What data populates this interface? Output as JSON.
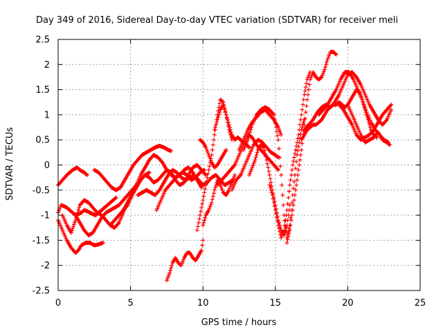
{
  "chart_data": {
    "type": "scatter",
    "title": "Day 349 of 2016, Sidereal Day-to-day VTEC variation (SDTVAR) for receiver meli",
    "xlabel": "GPS time / hours",
    "ylabel": "SDTVAR / TECUs",
    "xlim": [
      0,
      25
    ],
    "ylim": [
      -2.5,
      2.5
    ],
    "xticks": [
      "0",
      "5",
      "10",
      "15",
      "20",
      "25"
    ],
    "yticks": [
      "-2.5",
      "-2",
      "-1.5",
      "-1",
      "-0.5",
      "0",
      "0.5",
      "1",
      "1.5",
      "2",
      "2.5"
    ],
    "grid": true,
    "marker": "+",
    "series_color": "#ff0000",
    "series": [
      {
        "x": [
          0.0,
          0.15,
          0.3,
          0.45,
          0.6,
          0.8,
          1.0,
          1.3,
          1.5,
          1.8,
          2.0
        ],
        "y": [
          -0.4,
          -0.35,
          -0.3,
          -0.25,
          -0.2,
          -0.15,
          -0.1,
          -0.05,
          -0.1,
          -0.15,
          -0.2
        ]
      },
      {
        "x": [
          0.0,
          0.2,
          0.4,
          0.6,
          0.8,
          1.0,
          1.2,
          1.4,
          1.6,
          1.8,
          2.0,
          2.2,
          2.4,
          2.6,
          2.8,
          3.0,
          3.2,
          3.4,
          3.6,
          3.8,
          4.0
        ],
        "y": [
          -0.95,
          -0.8,
          -0.82,
          -0.85,
          -0.9,
          -0.95,
          -1.0,
          -0.98,
          -0.95,
          -0.9,
          -0.92,
          -0.95,
          -0.98,
          -1.0,
          -0.95,
          -0.9,
          -0.85,
          -0.8,
          -0.75,
          -0.7,
          -0.65
        ]
      },
      {
        "x": [
          0.0,
          0.3,
          0.6,
          0.9,
          1.2,
          1.4,
          1.6,
          1.9,
          2.2,
          2.5,
          2.8,
          3.1
        ],
        "y": [
          -1.1,
          -1.3,
          -1.5,
          -1.65,
          -1.75,
          -1.7,
          -1.6,
          -1.55,
          -1.55,
          -1.6,
          -1.58,
          -1.55
        ]
      },
      {
        "x": [
          0.3,
          0.6,
          0.9,
          1.2,
          1.5,
          1.8,
          2.1,
          2.4,
          2.7,
          3.0,
          3.3,
          3.6,
          3.9,
          4.2,
          4.5,
          4.8,
          5.1,
          5.4
        ],
        "y": [
          -1.0,
          -1.2,
          -1.35,
          -1.1,
          -0.8,
          -0.7,
          -0.75,
          -0.85,
          -0.95,
          -1.0,
          -1.1,
          -1.2,
          -1.25,
          -1.15,
          -0.95,
          -0.75,
          -0.55,
          -0.45
        ]
      },
      {
        "x": [
          1.2,
          1.5,
          1.8,
          2.1,
          2.4,
          2.7,
          3.0,
          3.3,
          3.6,
          3.9,
          4.2,
          4.5,
          4.8,
          5.1,
          5.4,
          5.7,
          6.0,
          6.3
        ],
        "y": [
          -1.0,
          -1.15,
          -1.3,
          -1.4,
          -1.35,
          -1.2,
          -1.05,
          -0.95,
          -0.9,
          -0.85,
          -0.8,
          -0.7,
          -0.6,
          -0.5,
          -0.4,
          -0.3,
          -0.2,
          -0.15
        ]
      },
      {
        "x": [
          2.5,
          2.8,
          3.1,
          3.4,
          3.7,
          4.0,
          4.3,
          4.6,
          4.9,
          5.2,
          5.5,
          5.8,
          6.1,
          6.4,
          6.7,
          7.0,
          7.3,
          7.6,
          7.8
        ],
        "y": [
          -0.1,
          -0.15,
          -0.25,
          -0.35,
          -0.45,
          -0.5,
          -0.45,
          -0.3,
          -0.15,
          0.0,
          0.1,
          0.2,
          0.25,
          0.3,
          0.35,
          0.38,
          0.35,
          0.3,
          0.28
        ]
      },
      {
        "x": [
          3.6,
          3.9,
          4.2,
          4.5,
          4.8,
          5.1,
          5.4,
          5.7,
          6.0,
          6.3,
          6.6,
          6.9,
          7.2,
          7.5,
          7.8,
          8.1,
          8.4,
          8.7,
          9.0,
          9.3,
          9.6,
          9.9
        ],
        "y": [
          -1.2,
          -1.1,
          -1.0,
          -0.9,
          -0.8,
          -0.6,
          -0.4,
          -0.2,
          -0.05,
          0.1,
          0.2,
          0.15,
          0.05,
          -0.1,
          -0.2,
          -0.25,
          -0.2,
          -0.1,
          -0.05,
          -0.15,
          -0.3,
          -0.45
        ]
      },
      {
        "x": [
          4.5,
          4.8,
          5.1,
          5.4,
          5.7,
          6.0,
          6.3,
          6.6,
          6.9,
          7.2,
          7.5,
          7.8,
          8.1,
          8.4,
          8.7,
          9.0,
          9.3,
          9.6,
          9.9,
          10.2
        ],
        "y": [
          -0.9,
          -0.75,
          -0.6,
          -0.45,
          -0.3,
          -0.2,
          -0.25,
          -0.35,
          -0.3,
          -0.2,
          -0.1,
          -0.15,
          -0.3,
          -0.4,
          -0.35,
          -0.2,
          -0.05,
          0.0,
          -0.1,
          -0.2
        ]
      },
      {
        "x": [
          5.5,
          5.8,
          6.1,
          6.4,
          6.7,
          7.0,
          7.3,
          7.6,
          7.9,
          8.2,
          8.5,
          8.8,
          9.1,
          9.4,
          9.7,
          10.0,
          10.3,
          10.6,
          10.9,
          11.2,
          11.5,
          11.8,
          12.1
        ],
        "y": [
          -0.6,
          -0.55,
          -0.5,
          -0.55,
          -0.6,
          -0.5,
          -0.35,
          -0.2,
          -0.1,
          -0.15,
          -0.25,
          -0.3,
          -0.25,
          -0.2,
          -0.3,
          -0.4,
          -0.35,
          -0.25,
          -0.2,
          -0.3,
          -0.4,
          -0.35,
          -0.3
        ]
      },
      {
        "x": [
          6.8,
          7.1,
          7.4,
          7.7,
          8.0,
          8.3,
          8.6,
          8.9,
          9.2,
          9.5,
          9.8,
          10.1
        ],
        "y": [
          -0.9,
          -0.7,
          -0.5,
          -0.4,
          -0.3,
          -0.2,
          -0.15,
          -0.2,
          -0.3,
          -0.25,
          -0.15,
          -0.1
        ]
      },
      {
        "x": [
          7.5,
          7.7,
          7.9,
          8.1,
          8.3,
          8.5,
          8.7,
          8.9,
          9.1,
          9.3,
          9.5,
          9.7,
          9.9,
          10.0
        ],
        "y": [
          -2.3,
          -2.15,
          -1.95,
          -1.85,
          -1.95,
          -2.0,
          -1.85,
          -1.75,
          -1.75,
          -1.85,
          -1.9,
          -1.8,
          -1.7,
          -1.5
        ]
      },
      {
        "x": [
          9.6,
          9.8,
          10.0,
          10.2,
          10.4,
          10.6,
          10.8,
          11.0,
          11.2,
          11.4,
          11.6,
          11.8,
          12.0
        ],
        "y": [
          -1.3,
          -1.0,
          -0.7,
          -0.4,
          -0.1,
          0.2,
          0.6,
          1.0,
          1.3,
          1.25,
          1.0,
          0.7,
          0.5
        ]
      },
      {
        "x": [
          9.8,
          10.0,
          10.2,
          10.4,
          10.6,
          10.8,
          11.0,
          11.2,
          11.4,
          11.6
        ],
        "y": [
          0.5,
          0.45,
          0.35,
          0.2,
          0.05,
          -0.05,
          0.0,
          0.1,
          0.2,
          0.3
        ]
      },
      {
        "x": [
          10.0,
          10.2,
          10.4,
          10.6,
          10.8,
          11.0,
          11.2,
          11.4,
          11.6,
          11.8,
          12.0,
          12.2
        ],
        "y": [
          -1.2,
          -1.0,
          -0.9,
          -0.75,
          -0.5,
          -0.3,
          -0.4,
          -0.55,
          -0.6,
          -0.5,
          -0.35,
          -0.2
        ]
      },
      {
        "x": [
          10.8,
          11.0,
          11.2,
          11.4,
          11.6,
          11.8,
          12.0,
          12.2,
          12.4,
          12.6,
          12.8,
          13.0,
          13.2
        ],
        "y": [
          0.7,
          0.9,
          1.1,
          1.2,
          1.0,
          0.8,
          0.6,
          0.5,
          0.55,
          0.5,
          0.45,
          0.4,
          0.35
        ]
      },
      {
        "x": [
          11.0,
          11.3,
          11.6,
          11.9,
          12.2,
          12.5,
          12.8,
          13.1,
          13.4,
          13.7,
          14.0,
          14.3,
          14.6,
          14.9,
          15.2
        ],
        "y": [
          -0.4,
          -0.3,
          -0.2,
          -0.1,
          0.0,
          0.2,
          0.4,
          0.6,
          0.55,
          0.4,
          0.3,
          0.2,
          0.1,
          0.0,
          -0.1
        ]
      },
      {
        "x": [
          12.0,
          12.3,
          12.6,
          12.9,
          13.2,
          13.5,
          13.8,
          14.1,
          14.4,
          14.7,
          15.0,
          15.2
        ],
        "y": [
          -0.5,
          -0.3,
          -0.2,
          0.0,
          0.2,
          0.4,
          0.5,
          0.45,
          0.35,
          0.25,
          0.2,
          0.15
        ]
      },
      {
        "x": [
          12.5,
          12.8,
          13.1,
          13.4,
          13.7,
          14.0,
          14.3,
          14.6,
          14.9,
          15.2,
          15.4
        ],
        "y": [
          0.3,
          0.5,
          0.7,
          0.85,
          0.95,
          1.05,
          1.1,
          1.0,
          0.9,
          0.75,
          0.6
        ]
      },
      {
        "x": [
          12.8,
          13.1,
          13.4,
          13.7,
          14.0,
          14.3,
          14.6,
          14.9,
          15.2,
          15.4,
          15.6,
          15.8,
          16.0,
          16.2,
          16.5,
          16.8,
          17.0
        ],
        "y": [
          0.3,
          0.5,
          0.8,
          1.0,
          1.1,
          1.15,
          1.1,
          1.0,
          0.5,
          -0.2,
          -1.0,
          -1.45,
          -1.2,
          -0.6,
          0.2,
          0.7,
          0.9
        ]
      },
      {
        "x": [
          13.2,
          13.4,
          13.6,
          13.8,
          14.0,
          14.2,
          14.4,
          14.6,
          14.8,
          15.0,
          15.2,
          15.4,
          15.6,
          15.8,
          16.0
        ],
        "y": [
          -0.2,
          -0.05,
          0.1,
          0.3,
          0.4,
          0.35,
          0.1,
          -0.2,
          -0.5,
          -0.8,
          -1.1,
          -1.3,
          -1.4,
          -1.2,
          -0.8
        ]
      },
      {
        "x": [
          14.6,
          14.8,
          15.0,
          15.2,
          15.4,
          15.6,
          15.8,
          16.0,
          16.2,
          16.4,
          16.6,
          16.8,
          17.0,
          17.2,
          17.4
        ],
        "y": [
          -0.4,
          -0.6,
          -0.9,
          -1.2,
          -1.45,
          -1.3,
          -0.9,
          -0.4,
          0.0,
          0.3,
          0.6,
          1.0,
          1.4,
          1.7,
          1.85
        ]
      },
      {
        "x": [
          15.8,
          16.0,
          16.2,
          16.4,
          16.6,
          16.8,
          17.0,
          17.2,
          17.4,
          17.6,
          17.8,
          18.0,
          18.2,
          18.4,
          18.6,
          18.8,
          19.0,
          19.2
        ],
        "y": [
          -1.55,
          -1.3,
          -0.9,
          -0.5,
          -0.1,
          0.3,
          0.8,
          1.3,
          1.7,
          1.85,
          1.75,
          1.7,
          1.75,
          1.9,
          2.1,
          2.25,
          2.25,
          2.2
        ]
      },
      {
        "x": [
          16.8,
          17.0,
          17.2,
          17.4,
          17.6,
          17.8,
          18.0,
          18.2,
          18.4,
          18.6,
          18.8,
          19.0,
          19.2,
          19.4,
          19.6,
          19.8,
          20.0,
          20.2,
          20.4,
          20.6,
          20.8,
          21.0,
          21.2,
          21.4,
          21.6,
          21.8,
          22.0
        ],
        "y": [
          0.5,
          0.6,
          0.7,
          0.75,
          0.8,
          0.8,
          0.85,
          0.9,
          1.0,
          1.1,
          1.15,
          1.2,
          1.2,
          1.25,
          1.2,
          1.15,
          1.2,
          1.3,
          1.4,
          1.5,
          1.45,
          1.3,
          1.1,
          0.9,
          0.7,
          0.6,
          0.55
        ]
      },
      {
        "x": [
          17.0,
          17.3,
          17.6,
          17.9,
          18.2,
          18.5,
          18.8,
          19.1,
          19.4,
          19.7,
          20.0,
          20.3,
          20.6,
          20.9,
          21.2,
          21.5,
          21.8,
          22.1,
          22.4,
          22.7,
          23.0
        ],
        "y": [
          0.7,
          0.8,
          0.9,
          1.05,
          1.15,
          1.2,
          1.15,
          1.25,
          1.4,
          1.6,
          1.8,
          1.85,
          1.75,
          1.6,
          1.4,
          1.2,
          1.05,
          0.9,
          0.8,
          0.9,
          1.1
        ]
      },
      {
        "x": [
          18.0,
          18.3,
          18.6,
          18.9,
          19.2,
          19.5,
          19.8,
          20.1,
          20.4,
          20.7,
          21.0,
          21.3,
          21.6,
          21.9,
          22.2,
          22.5,
          22.8
        ],
        "y": [
          1.0,
          1.1,
          1.2,
          1.35,
          1.5,
          1.7,
          1.85,
          1.85,
          1.7,
          1.5,
          1.3,
          1.05,
          0.85,
          0.7,
          0.6,
          0.5,
          0.45
        ]
      },
      {
        "x": [
          19.4,
          19.7,
          20.0,
          20.3,
          20.6,
          20.9,
          21.2,
          21.5,
          21.8,
          22.1,
          22.4,
          22.7,
          23.0
        ],
        "y": [
          1.2,
          1.1,
          0.95,
          0.8,
          0.6,
          0.5,
          0.55,
          0.6,
          0.7,
          0.85,
          1.0,
          1.1,
          1.2
        ]
      },
      {
        "x": [
          20.0,
          20.3,
          20.6,
          20.9,
          21.2,
          21.5,
          21.8,
          22.1,
          22.4,
          22.7,
          22.9
        ],
        "y": [
          1.2,
          1.0,
          0.8,
          0.6,
          0.45,
          0.5,
          0.55,
          0.65,
          0.5,
          0.45,
          0.4
        ]
      }
    ]
  }
}
